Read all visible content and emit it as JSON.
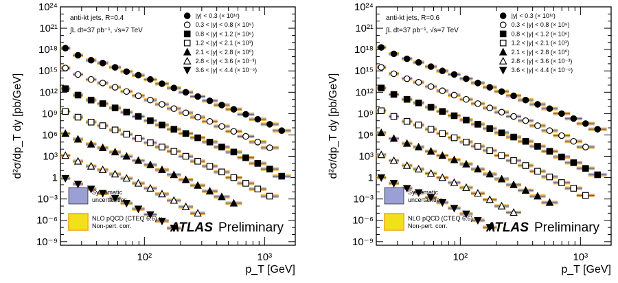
{
  "chart_data": [
    {
      "id": "R04",
      "type": "scatter",
      "xscale": "log",
      "yscale": "log",
      "xlim": [
        20,
        1800
      ],
      "ylim": [
        -9.5,
        24
      ],
      "xlabel": "p_T [GeV]",
      "ylabel": "d²σ/dp_T dy [pb/GeV]",
      "x_ticks": [
        "10²",
        "10³"
      ],
      "y_ticks": [
        "10⁻⁹",
        "10⁻⁶",
        "10⁻³",
        "1",
        "10³",
        "10⁶",
        "10⁹",
        "10¹²",
        "10¹⁵",
        "10¹⁸",
        "10²¹",
        "10²⁴"
      ],
      "annotation_line1": "anti-kt   jets,  R=0.4",
      "annotation_line2": "∫L dt=37 pb⁻¹, √s=7 TeV",
      "legend_box1": [
        "Systematic",
        "uncertainties"
      ],
      "legend_box2": [
        "NLO pQCD (CTEQ 6.6) ×",
        "Non-pert. corr."
      ],
      "brand": "ATLAS",
      "brand_suffix": "Preliminary",
      "series": [
        {
          "name": "|y| < 0.3 (× 10¹²)",
          "marker": "filled-circle",
          "x": [
            22,
            28,
            36,
            45,
            57,
            71,
            89,
            112,
            140,
            176,
            221,
            278,
            350,
            440,
            554,
            697,
            877,
            1103,
            1388
          ],
          "y": [
            18.2,
            17.2,
            16.5,
            16.1,
            15.5,
            14.9,
            14.4,
            13.8,
            13.2,
            12.6,
            12.0,
            11.4,
            10.8,
            10.2,
            9.6,
            8.9,
            8.2,
            7.5,
            6.6
          ]
        },
        {
          "name": "0.3 < |y| < 0.8 (× 10⁹)",
          "marker": "open-circle",
          "x": [
            22,
            28,
            36,
            45,
            57,
            71,
            89,
            112,
            140,
            176,
            221,
            278,
            350,
            440,
            554,
            697,
            877,
            1103
          ],
          "y": [
            15.4,
            14.5,
            13.8,
            13.3,
            12.7,
            12.1,
            11.5,
            10.9,
            10.3,
            9.7,
            9.1,
            8.5,
            7.9,
            7.2,
            6.5,
            5.8,
            5.0,
            4.2
          ]
        },
        {
          "name": "0.8 < |y| < 1.2 (× 10⁶)",
          "marker": "filled-square",
          "x": [
            22,
            28,
            36,
            45,
            57,
            71,
            89,
            112,
            140,
            176,
            221,
            278,
            350,
            440,
            554,
            697,
            877,
            1103,
            1388
          ],
          "y": [
            12.5,
            11.6,
            10.9,
            10.4,
            9.8,
            9.2,
            8.6,
            8.0,
            7.4,
            6.8,
            6.2,
            5.6,
            5.0,
            4.3,
            3.6,
            2.8,
            2.0,
            1.2,
            0.2
          ]
        },
        {
          "name": "1.2 < |y| < 2.1 (× 10³)",
          "marker": "open-square",
          "x": [
            22,
            28,
            36,
            45,
            57,
            71,
            89,
            112,
            140,
            176,
            221,
            278,
            350,
            440,
            554,
            697,
            877,
            1103
          ],
          "y": [
            9.3,
            8.5,
            7.8,
            7.3,
            6.7,
            6.1,
            5.5,
            4.9,
            4.3,
            3.7,
            3.0,
            2.3,
            1.6,
            0.8,
            0.0,
            -0.8,
            -1.6,
            -2.6
          ]
        },
        {
          "name": "2.1 < |y| < 2.8 (× 10⁰)",
          "marker": "filled-triangle-up",
          "x": [
            22,
            28,
            36,
            45,
            57,
            71,
            89,
            112,
            140,
            176,
            221,
            278,
            350,
            440,
            554
          ],
          "y": [
            6.2,
            5.4,
            4.7,
            4.2,
            3.6,
            3.0,
            2.4,
            1.8,
            1.1,
            0.4,
            -0.3,
            -1.1,
            -1.9,
            -2.7,
            -3.6
          ]
        },
        {
          "name": "2.8 < |y| < 3.6 (× 10⁻³)",
          "marker": "open-triangle-up",
          "x": [
            22,
            28,
            36,
            45,
            57,
            71,
            89,
            112,
            140,
            176,
            221,
            278
          ],
          "y": [
            3.1,
            2.3,
            1.6,
            1.1,
            0.5,
            -0.1,
            -0.8,
            -1.5,
            -2.3,
            -3.2,
            -4.1,
            -5.0
          ]
        },
        {
          "name": "3.6 < |y| < 4.4 (× 10⁻⁶)",
          "marker": "filled-triangle-down",
          "x": [
            22,
            28,
            36,
            45,
            57,
            71,
            89,
            112,
            140,
            176
          ],
          "y": [
            -0.1,
            -0.9,
            -1.6,
            -2.2,
            -2.9,
            -3.6,
            -4.4,
            -5.2,
            -6.1,
            -7.1
          ]
        }
      ]
    },
    {
      "id": "R06",
      "type": "scatter",
      "xscale": "log",
      "yscale": "log",
      "xlim": [
        20,
        1800
      ],
      "ylim": [
        -9.5,
        24
      ],
      "xlabel": "p_T [GeV]",
      "ylabel": "d²σ/dp_T dy [pb/GeV]",
      "x_ticks": [
        "10²",
        "10³"
      ],
      "y_ticks": [
        "10⁻⁹",
        "10⁻⁶",
        "10⁻³",
        "1",
        "10³",
        "10⁶",
        "10⁹",
        "10¹²",
        "10¹⁵",
        "10¹⁸",
        "10²¹",
        "10²⁴"
      ],
      "annotation_line1": "anti-kt   jets,  R=0.6",
      "annotation_line2": "∫L dt=37 pb⁻¹, √s=7 TeV",
      "legend_box1": [
        "Systematic",
        "uncertainties"
      ],
      "legend_box2": [
        "NLO pQCD (CTEQ 6.6) ×",
        "Non-pert. corr."
      ],
      "brand": "ATLAS",
      "brand_suffix": "Preliminary",
      "series": [
        {
          "name": "|y| < 0.3 (× 10¹²)",
          "marker": "filled-circle",
          "x": [
            22,
            28,
            36,
            45,
            57,
            71,
            89,
            112,
            140,
            176,
            221,
            278,
            350,
            440,
            554,
            697,
            877,
            1103,
            1388
          ],
          "y": [
            18.3,
            17.4,
            16.7,
            16.2,
            15.6,
            15.0,
            14.5,
            13.9,
            13.3,
            12.7,
            12.1,
            11.5,
            10.9,
            10.3,
            9.7,
            9.0,
            8.3,
            7.6,
            6.8
          ]
        },
        {
          "name": "0.3 < |y| < 0.8 (× 10⁹)",
          "marker": "open-circle",
          "x": [
            22,
            28,
            36,
            45,
            57,
            71,
            89,
            112,
            140,
            176,
            221,
            278,
            350,
            440,
            554,
            697,
            877,
            1103
          ],
          "y": [
            15.5,
            14.6,
            13.9,
            13.4,
            12.8,
            12.2,
            11.6,
            11.0,
            10.4,
            9.8,
            9.2,
            8.6,
            8.0,
            7.3,
            6.6,
            5.9,
            5.1,
            4.3
          ]
        },
        {
          "name": "0.8 < |y| < 1.2 (× 10⁶)",
          "marker": "filled-square",
          "x": [
            22,
            28,
            36,
            45,
            57,
            71,
            89,
            112,
            140,
            176,
            221,
            278,
            350,
            440,
            554,
            697,
            877,
            1103,
            1388
          ],
          "y": [
            12.6,
            11.7,
            11.0,
            10.5,
            9.9,
            9.3,
            8.7,
            8.1,
            7.5,
            6.9,
            6.3,
            5.7,
            5.1,
            4.4,
            3.7,
            2.9,
            2.1,
            1.3,
            0.4
          ]
        },
        {
          "name": "1.2 < |y| < 2.1 (× 10³)",
          "marker": "open-square",
          "x": [
            22,
            28,
            36,
            45,
            57,
            71,
            89,
            112,
            140,
            176,
            221,
            278,
            350,
            440,
            554,
            697,
            877,
            1103
          ],
          "y": [
            9.4,
            8.6,
            7.9,
            7.4,
            6.8,
            6.2,
            5.6,
            5.0,
            4.4,
            3.8,
            3.1,
            2.4,
            1.7,
            0.9,
            0.1,
            -0.7,
            -1.5,
            -2.5
          ]
        },
        {
          "name": "2.1 < |y| < 2.8 (× 10⁰)",
          "marker": "filled-triangle-up",
          "x": [
            22,
            28,
            36,
            45,
            57,
            71,
            89,
            112,
            140,
            176,
            221,
            278,
            350,
            440,
            554
          ],
          "y": [
            6.3,
            5.5,
            4.8,
            4.3,
            3.7,
            3.1,
            2.5,
            1.9,
            1.2,
            0.5,
            -0.2,
            -1.0,
            -1.8,
            -2.6,
            -3.5
          ]
        },
        {
          "name": "2.8 < |y| < 3.6 (× 10⁻³)",
          "marker": "open-triangle-up",
          "x": [
            22,
            28,
            36,
            45,
            57,
            71,
            89,
            112,
            140,
            176,
            221,
            278
          ],
          "y": [
            3.2,
            2.4,
            1.7,
            1.2,
            0.6,
            0.0,
            -0.7,
            -1.4,
            -2.2,
            -3.1,
            -4.0,
            -4.9
          ]
        },
        {
          "name": "3.6 < |y| < 4.4 (× 10⁻⁶)",
          "marker": "filled-triangle-down",
          "x": [
            22,
            28,
            36,
            45,
            57,
            71,
            89,
            112,
            140,
            176
          ],
          "y": [
            0.0,
            -0.8,
            -1.5,
            -2.1,
            -2.8,
            -3.5,
            -4.3,
            -5.1,
            -6.0,
            -7.0
          ]
        }
      ]
    }
  ]
}
